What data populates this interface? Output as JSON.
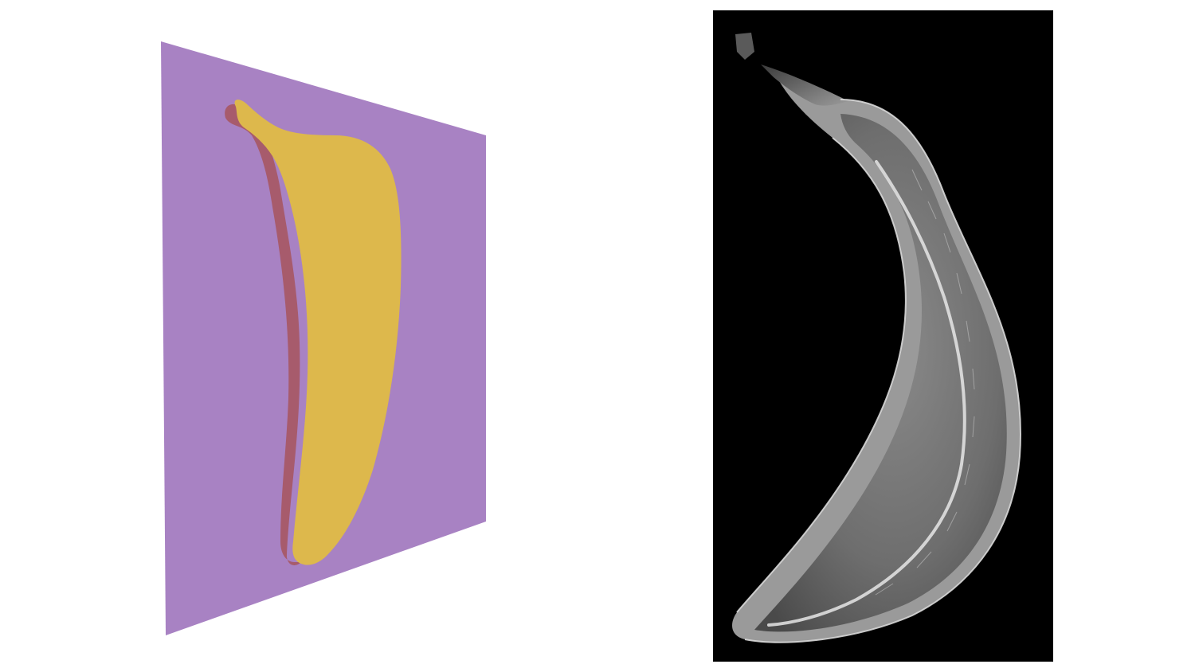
{
  "scene": {
    "left": {
      "description_ref": "cross-section-plane",
      "colors": {
        "plane": "#a882c3",
        "banana_face": "#ddb84c",
        "banana_side": "#a75b6c"
      }
    },
    "right": {
      "description_ref": "mri-slice",
      "colors": {
        "background": "#000000",
        "tissue": "#bdbdbd",
        "highlight": "#efefef"
      }
    }
  }
}
